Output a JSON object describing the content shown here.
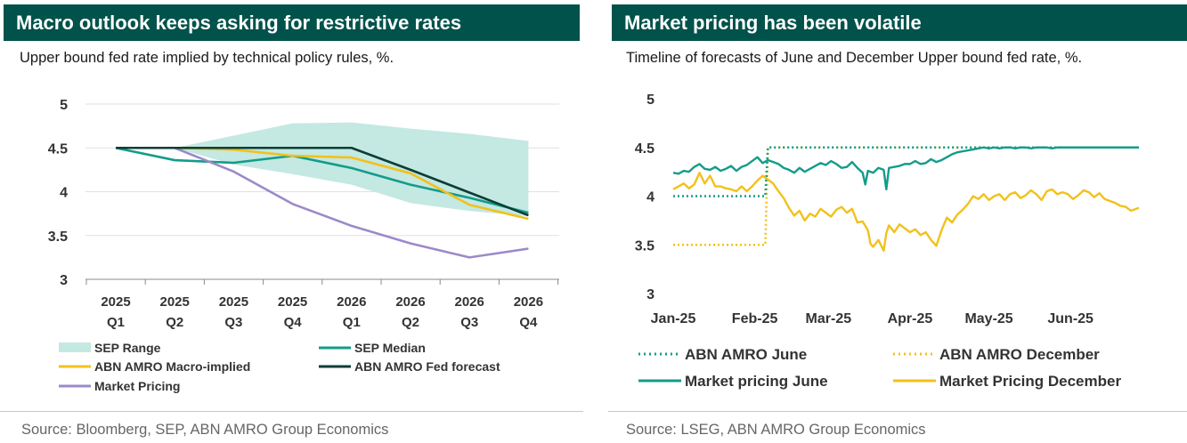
{
  "panels": {
    "left": {
      "banner": "Macro outlook keeps asking for restrictive rates",
      "subtitle": "Upper bound fed rate implied by technical policy rules, %.",
      "source": "Source: Bloomberg, SEP, ABN AMRO Group Economics"
    },
    "right": {
      "banner": "Market pricing has been volatile",
      "subtitle": "Timeline of forecasts of June and December Upper bound fed rate, %.",
      "source": "Source: LSEG, ABN AMRO Group Economics"
    }
  },
  "colors": {
    "banner": "#00524a",
    "sep_range": "#c4e8e2",
    "sep_median": "#139c8a",
    "abn_macro": "#f2c11b",
    "abn_fed": "#0b3e36",
    "market": "#9b8ac8",
    "june": "#139c8a",
    "december": "#f2c11b"
  },
  "chart_data": [
    {
      "type": "line",
      "categories": [
        [
          "2025",
          "Q1"
        ],
        [
          "2025",
          "Q2"
        ],
        [
          "2025",
          "Q3"
        ],
        [
          "2025",
          "Q4"
        ],
        [
          "2026",
          "Q1"
        ],
        [
          "2026",
          "Q2"
        ],
        [
          "2026",
          "Q3"
        ],
        [
          "2026",
          "Q4"
        ]
      ],
      "ylim": [
        3,
        5
      ],
      "yticks": [
        "3",
        "3.5",
        "4",
        "4.5",
        "5"
      ],
      "grid": true,
      "legend_position": "bottom",
      "band": {
        "name": "SEP Range",
        "x_start": 1,
        "x_end": 7,
        "upper": [
          4.5,
          4.64,
          4.78,
          4.79,
          4.72,
          4.66,
          4.58
        ],
        "lower": [
          4.5,
          4.31,
          4.2,
          4.08,
          3.87,
          3.78,
          3.72
        ]
      },
      "series": [
        {
          "name": "SEP Median",
          "x_start": 0,
          "values": [
            4.5,
            4.36,
            4.33,
            4.41,
            4.27,
            4.08,
            3.93,
            3.76
          ]
        },
        {
          "name": "ABN AMRO Macro-implied",
          "x_start": 0,
          "values": [
            4.5,
            4.5,
            4.48,
            4.41,
            4.39,
            4.21,
            3.85,
            3.69
          ]
        },
        {
          "name": "ABN AMRO Fed forecast",
          "x_start": 0,
          "values": [
            4.5,
            4.5,
            4.5,
            4.5,
            4.5,
            4.25,
            3.99,
            3.73
          ]
        },
        {
          "name": "Market Pricing",
          "x_start": 0,
          "values": [
            4.5,
            4.5,
            4.23,
            3.86,
            3.61,
            3.41,
            3.25,
            3.35
          ]
        }
      ],
      "legend": [
        {
          "name": "SEP Range",
          "swatch": "band"
        },
        {
          "name": "SEP Median",
          "swatch": "line"
        },
        {
          "name": "ABN AMRO Macro-implied",
          "swatch": "line"
        },
        {
          "name": "ABN AMRO Fed forecast",
          "swatch": "line"
        },
        {
          "name": "Market Pricing",
          "swatch": "line"
        }
      ]
    },
    {
      "type": "line",
      "x_labels": [
        "Jan-25",
        "Feb-25",
        "Mar-25",
        "Apr-25",
        "May-25",
        "Jun-25"
      ],
      "x_start_label": "Jan-25",
      "x_end_day": 177,
      "ylim": [
        3,
        5
      ],
      "yticks": [
        "3",
        "3.5",
        "4",
        "4.5",
        "5"
      ],
      "grid": false,
      "legend_position": "bottom",
      "series": [
        {
          "name": "ABN AMRO June",
          "style": "dotted",
          "step": true,
          "points": [
            [
              0,
              4.0
            ],
            [
              35,
              4.0
            ],
            [
              36,
              4.5
            ],
            [
              177,
              4.5
            ]
          ]
        },
        {
          "name": "ABN AMRO December",
          "style": "dotted",
          "step": true,
          "points": [
            [
              0,
              3.5
            ],
            [
              35,
              3.5
            ],
            [
              36,
              4.5
            ],
            [
              177,
              4.5
            ]
          ]
        },
        {
          "name": "Market pricing June",
          "style": "solid",
          "points": [
            [
              0,
              4.24
            ],
            [
              2,
              4.23
            ],
            [
              4,
              4.26
            ],
            [
              6,
              4.25
            ],
            [
              8,
              4.3
            ],
            [
              10,
              4.33
            ],
            [
              12,
              4.28
            ],
            [
              14,
              4.27
            ],
            [
              16,
              4.3
            ],
            [
              18,
              4.26
            ],
            [
              20,
              4.28
            ],
            [
              22,
              4.31
            ],
            [
              24,
              4.26
            ],
            [
              26,
              4.3
            ],
            [
              28,
              4.32
            ],
            [
              30,
              4.36
            ],
            [
              32,
              4.4
            ],
            [
              34,
              4.34
            ],
            [
              36,
              4.37
            ],
            [
              38,
              4.35
            ],
            [
              40,
              4.33
            ],
            [
              42,
              4.29
            ],
            [
              44,
              4.27
            ],
            [
              46,
              4.24
            ],
            [
              48,
              4.29
            ],
            [
              50,
              4.25
            ],
            [
              52,
              4.28
            ],
            [
              54,
              4.31
            ],
            [
              56,
              4.34
            ],
            [
              58,
              4.32
            ],
            [
              60,
              4.36
            ],
            [
              62,
              4.33
            ],
            [
              64,
              4.29
            ],
            [
              66,
              4.3
            ],
            [
              68,
              4.35
            ],
            [
              70,
              4.29
            ],
            [
              72,
              4.24
            ],
            [
              73,
              4.12
            ],
            [
              74,
              4.26
            ],
            [
              76,
              4.24
            ],
            [
              78,
              4.29
            ],
            [
              80,
              4.27
            ],
            [
              81,
              4.07
            ],
            [
              82,
              4.29
            ],
            [
              84,
              4.3
            ],
            [
              86,
              4.31
            ],
            [
              88,
              4.33
            ],
            [
              90,
              4.33
            ],
            [
              92,
              4.36
            ],
            [
              94,
              4.33
            ],
            [
              96,
              4.34
            ],
            [
              98,
              4.38
            ],
            [
              100,
              4.35
            ],
            [
              102,
              4.37
            ],
            [
              104,
              4.4
            ],
            [
              106,
              4.43
            ],
            [
              108,
              4.45
            ],
            [
              110,
              4.46
            ],
            [
              112,
              4.47
            ],
            [
              114,
              4.48
            ],
            [
              116,
              4.49
            ],
            [
              118,
              4.5
            ],
            [
              120,
              4.49
            ],
            [
              122,
              4.5
            ],
            [
              124,
              4.49
            ],
            [
              126,
              4.5
            ],
            [
              128,
              4.5
            ],
            [
              130,
              4.49
            ],
            [
              132,
              4.5
            ],
            [
              134,
              4.5
            ],
            [
              136,
              4.49
            ],
            [
              138,
              4.5
            ],
            [
              140,
              4.5
            ],
            [
              142,
              4.5
            ],
            [
              144,
              4.49
            ],
            [
              146,
              4.5
            ],
            [
              148,
              4.5
            ],
            [
              150,
              4.5
            ],
            [
              152,
              4.5
            ],
            [
              154,
              4.5
            ],
            [
              156,
              4.5
            ],
            [
              158,
              4.5
            ],
            [
              160,
              4.5
            ],
            [
              162,
              4.5
            ],
            [
              164,
              4.5
            ],
            [
              166,
              4.5
            ],
            [
              168,
              4.5
            ],
            [
              170,
              4.5
            ],
            [
              172,
              4.5
            ],
            [
              174,
              4.5
            ],
            [
              177,
              4.5
            ]
          ]
        },
        {
          "name": "Market Pricing December",
          "style": "solid",
          "points": [
            [
              0,
              4.07
            ],
            [
              2,
              4.1
            ],
            [
              4,
              4.13
            ],
            [
              6,
              4.08
            ],
            [
              8,
              4.12
            ],
            [
              10,
              4.24
            ],
            [
              12,
              4.13
            ],
            [
              14,
              4.21
            ],
            [
              16,
              4.1
            ],
            [
              18,
              4.1
            ],
            [
              20,
              4.08
            ],
            [
              22,
              4.07
            ],
            [
              24,
              4.05
            ],
            [
              26,
              4.1
            ],
            [
              28,
              4.05
            ],
            [
              30,
              4.1
            ],
            [
              32,
              4.16
            ],
            [
              34,
              4.21
            ],
            [
              36,
              4.17
            ],
            [
              38,
              4.13
            ],
            [
              40,
              4.05
            ],
            [
              42,
              3.98
            ],
            [
              44,
              3.88
            ],
            [
              46,
              3.8
            ],
            [
              48,
              3.85
            ],
            [
              50,
              3.75
            ],
            [
              52,
              3.82
            ],
            [
              54,
              3.79
            ],
            [
              56,
              3.87
            ],
            [
              58,
              3.83
            ],
            [
              60,
              3.79
            ],
            [
              62,
              3.86
            ],
            [
              64,
              3.89
            ],
            [
              66,
              3.83
            ],
            [
              68,
              3.87
            ],
            [
              70,
              3.73
            ],
            [
              72,
              3.74
            ],
            [
              74,
              3.65
            ],
            [
              75,
              3.51
            ],
            [
              76,
              3.48
            ],
            [
              78,
              3.55
            ],
            [
              80,
              3.44
            ],
            [
              81,
              3.62
            ],
            [
              82,
              3.7
            ],
            [
              84,
              3.63
            ],
            [
              86,
              3.71
            ],
            [
              88,
              3.67
            ],
            [
              90,
              3.63
            ],
            [
              92,
              3.66
            ],
            [
              94,
              3.6
            ],
            [
              96,
              3.63
            ],
            [
              98,
              3.55
            ],
            [
              100,
              3.49
            ],
            [
              102,
              3.65
            ],
            [
              104,
              3.78
            ],
            [
              106,
              3.73
            ],
            [
              108,
              3.81
            ],
            [
              110,
              3.86
            ],
            [
              112,
              3.92
            ],
            [
              114,
              4.0
            ],
            [
              116,
              3.97
            ],
            [
              118,
              4.02
            ],
            [
              120,
              3.96
            ],
            [
              122,
              4.0
            ],
            [
              124,
              4.02
            ],
            [
              126,
              3.96
            ],
            [
              128,
              4.02
            ],
            [
              130,
              4.04
            ],
            [
              132,
              3.98
            ],
            [
              134,
              4.01
            ],
            [
              136,
              4.06
            ],
            [
              138,
              4.02
            ],
            [
              140,
              3.96
            ],
            [
              142,
              4.05
            ],
            [
              144,
              4.07
            ],
            [
              146,
              4.02
            ],
            [
              148,
              4.04
            ],
            [
              150,
              4.02
            ],
            [
              152,
              3.97
            ],
            [
              154,
              4.01
            ],
            [
              156,
              4.06
            ],
            [
              158,
              4.04
            ],
            [
              160,
              3.99
            ],
            [
              162,
              4.03
            ],
            [
              164,
              3.97
            ],
            [
              166,
              3.95
            ],
            [
              168,
              3.93
            ],
            [
              170,
              3.9
            ],
            [
              172,
              3.89
            ],
            [
              174,
              3.85
            ],
            [
              177,
              3.88
            ]
          ]
        }
      ],
      "legend": [
        {
          "name": "ABN AMRO June",
          "swatch": "dotted"
        },
        {
          "name": "ABN AMRO December",
          "swatch": "dotted"
        },
        {
          "name": "Market pricing June",
          "swatch": "line"
        },
        {
          "name": "Market Pricing December",
          "swatch": "line"
        }
      ]
    }
  ]
}
